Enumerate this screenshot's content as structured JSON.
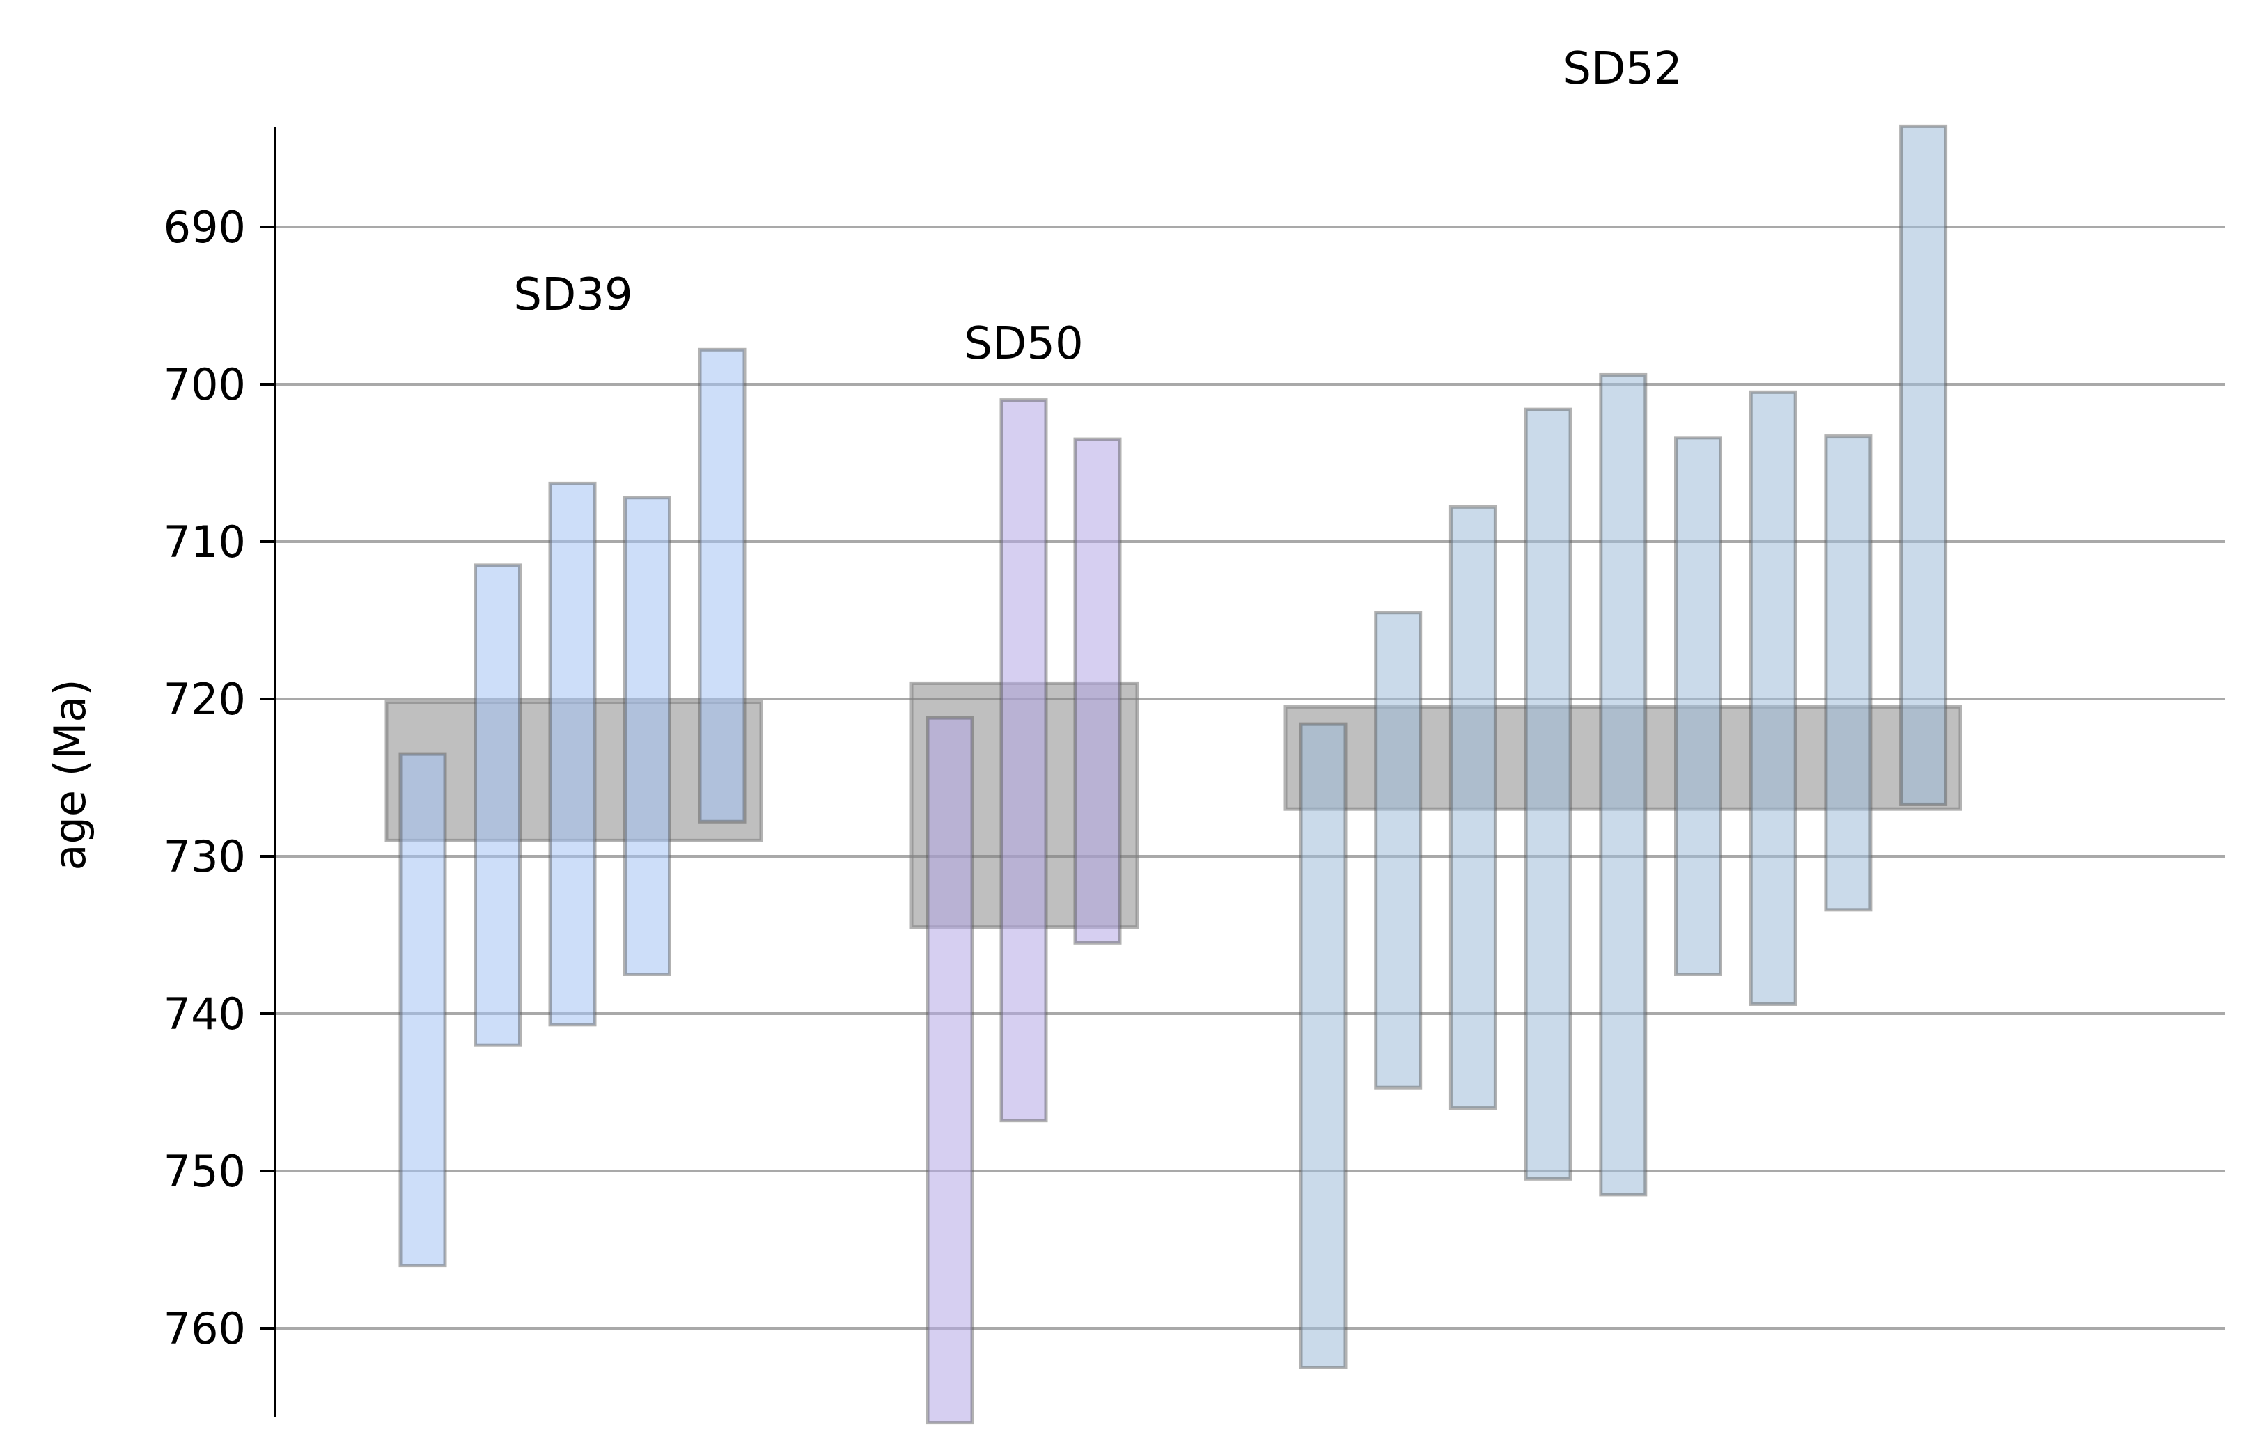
{
  "chart_data": {
    "type": "bar",
    "subtype": "floating-range",
    "ylabel": "age (Ma)",
    "y_axis_inverted": true,
    "ylim": [
      683.5,
      766.0
    ],
    "yticks": [
      690,
      700,
      710,
      720,
      730,
      740,
      750,
      760
    ],
    "grid": "horizontal",
    "groups": [
      {
        "label": "SD39",
        "color": "#a4c2f4",
        "weighted_mean_range": [
          720.2,
          729.0
        ],
        "ranges": [
          [
            723.5,
            756.0
          ],
          [
            711.5,
            742.0
          ],
          [
            706.3,
            740.7
          ],
          [
            707.2,
            737.5
          ],
          [
            697.8,
            727.8
          ]
        ]
      },
      {
        "label": "SD50",
        "color": "#b4a7e6",
        "weighted_mean_range": [
          719.0,
          734.5
        ],
        "ranges": [
          [
            721.2,
            766.0
          ],
          [
            701.0,
            746.8
          ],
          [
            703.5,
            735.5
          ]
        ]
      },
      {
        "label": "SD52",
        "color": "#9fbbd9",
        "weighted_mean_range": [
          720.5,
          727.0
        ],
        "ranges": [
          [
            721.6,
            762.5
          ],
          [
            714.5,
            744.7
          ],
          [
            707.8,
            746.0
          ],
          [
            701.6,
            750.5
          ],
          [
            699.4,
            751.5
          ],
          [
            703.4,
            737.5
          ],
          [
            700.5,
            739.4
          ],
          [
            703.3,
            733.4
          ],
          [
            683.6,
            726.7
          ]
        ]
      }
    ]
  }
}
